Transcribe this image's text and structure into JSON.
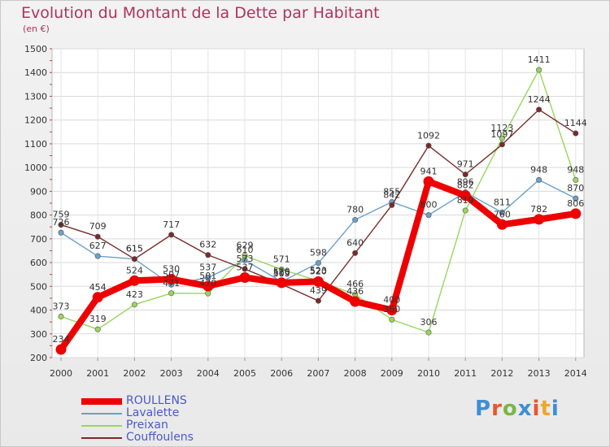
{
  "title": "Evolution du Montant de la Dette par Habitant",
  "unit_label": "(en €)",
  "logo": {
    "text": "Proxiti",
    "colors": [
      "#3b8fd6",
      "#e8562e",
      "#7ab648",
      "#3b8fd6",
      "#e8562e",
      "#f2a52b",
      "#3b8fd6"
    ]
  },
  "chart_data": {
    "type": "line",
    "title": "Evolution du Montant de la Dette par Habitant",
    "ylabel": "(en €)",
    "xlabel": "",
    "ylim": [
      200,
      1500
    ],
    "yticks": [
      200,
      300,
      400,
      500,
      600,
      700,
      800,
      900,
      1000,
      1100,
      1200,
      1300,
      1400,
      1500
    ],
    "grid": true,
    "legend_position": "bottom-left",
    "x": [
      "2000",
      "2001",
      "2002",
      "2003",
      "2004",
      "2005",
      "2006",
      "2007",
      "2008",
      "2009",
      "2010",
      "2011",
      "2012",
      "2013",
      "2014"
    ],
    "series": [
      {
        "name": "ROULLENS",
        "color": "#ee0000",
        "values": [
          234,
          454,
          524,
          530,
          501,
          537,
          515,
          520,
          436,
          400,
          941,
          882,
          760,
          782,
          806
        ]
      },
      {
        "name": "Lavalette",
        "color": "#6aa0cc",
        "values": [
          726,
          627,
          615,
          507,
          537,
          610,
          520,
          598,
          780,
          855,
          800,
          896,
          811,
          948,
          870
        ]
      },
      {
        "name": "Preixan",
        "color": "#99d65c",
        "values": [
          373,
          319,
          423,
          471,
          470,
          629,
          571,
          523,
          466,
          360,
          306,
          819,
          1123,
          1411,
          948
        ]
      },
      {
        "name": "Couffoulens",
        "color": "#7a2a2a",
        "values": [
          759,
          709,
          615,
          717,
          632,
          573,
          509,
          439,
          640,
          842,
          1092,
          971,
          1097,
          1244,
          1144
        ]
      }
    ]
  }
}
